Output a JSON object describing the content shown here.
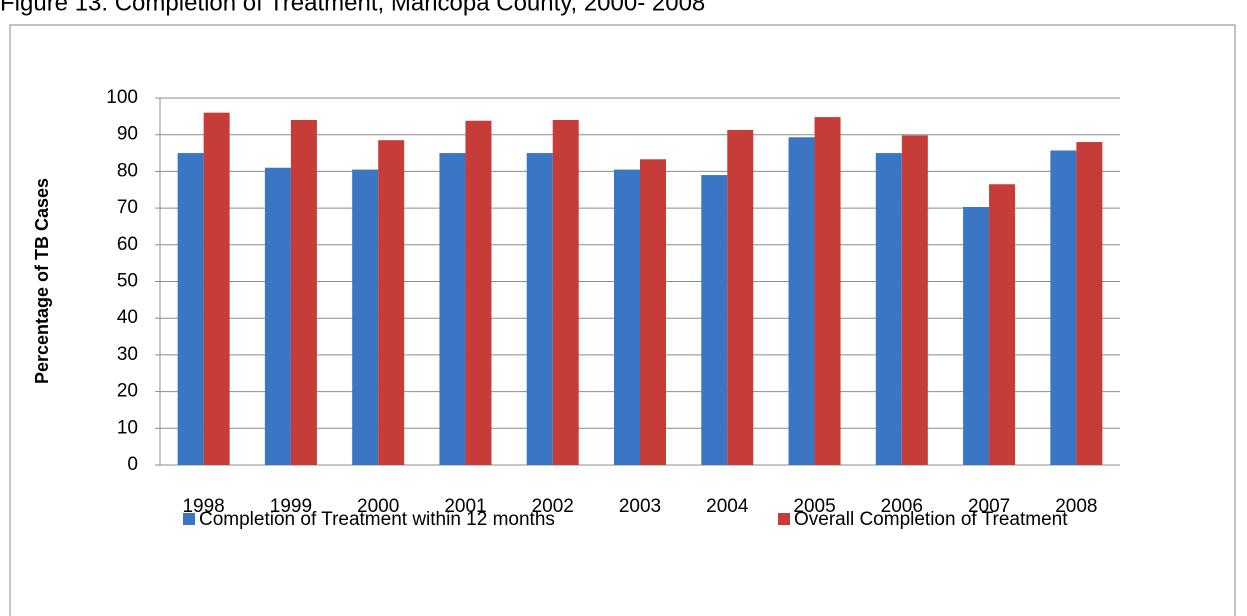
{
  "chart_data": {
    "type": "bar",
    "title": "Figure 13: Completion of Treatment, Maricopa County, 2000- 2008",
    "y_label": "Percentage of TB Cases",
    "categories": [
      "1998",
      "1999",
      "2000",
      "2001",
      "2002",
      "2003",
      "2004",
      "2005",
      "2006",
      "2007",
      "2008"
    ],
    "series": [
      {
        "name": "Completion of Treatment within 12 months",
        "color": "#3a76c4",
        "values": [
          85,
          81,
          80.5,
          85,
          85,
          80.5,
          79,
          89.3,
          85,
          70.3,
          85.7
        ]
      },
      {
        "name": "Overall Completion of Treatment",
        "color": "#c63c38",
        "values": [
          96,
          94,
          88.5,
          93.8,
          94,
          83.3,
          91.3,
          94.8,
          89.8,
          76.5,
          88
        ]
      }
    ],
    "ylim": [
      0,
      100
    ],
    "yticks": [
      0,
      10,
      20,
      30,
      40,
      50,
      60,
      70,
      80,
      90,
      100
    ],
    "grid": true
  }
}
